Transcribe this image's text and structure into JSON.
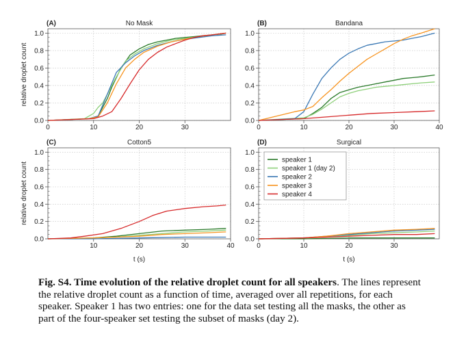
{
  "figure": {
    "y_axis_label": "relative droplet count",
    "x_axis_label": "t (s)"
  },
  "caption": {
    "bold": "Fig. S4. Time evolution of the relative droplet count for all speakers",
    "text": ". The lines represent the relative droplet count as a function of time, averaged over all repetitions, for each speaker. Speaker 1 has two entries: one for the data set testing all the masks, the other as part of the four-speaker set testing the subset of masks (day 2)."
  },
  "legend": {
    "placement": "top-left of panel D",
    "entries": [
      {
        "name": "speaker 1",
        "color": "#2a7a2a"
      },
      {
        "name": "speaker 1 (day 2)",
        "color": "#8ccf78"
      },
      {
        "name": "speaker 2",
        "color": "#3a78b4"
      },
      {
        "name": "speaker 3",
        "color": "#f7931e"
      },
      {
        "name": "speaker 4",
        "color": "#d62728"
      }
    ]
  },
  "chart_data": [
    {
      "type": "line",
      "panel": "(A)",
      "title": "No Mask",
      "xlabel": "",
      "ylabel": "relative droplet count",
      "xlim": [
        0,
        40
      ],
      "ylim": [
        0,
        1.05
      ],
      "xticks": [
        0,
        10,
        20,
        30
      ],
      "yticks": [
        0.0,
        0.2,
        0.4,
        0.6,
        0.8,
        1.0
      ],
      "series": [
        {
          "name": "speaker 1",
          "color": "#2a7a2a",
          "x": [
            0,
            9,
            11,
            12,
            13,
            14,
            16,
            18,
            20,
            22,
            24,
            26,
            28,
            30,
            32,
            34,
            36,
            38,
            39
          ],
          "y": [
            0,
            0.02,
            0.05,
            0.15,
            0.25,
            0.38,
            0.6,
            0.75,
            0.82,
            0.87,
            0.9,
            0.92,
            0.94,
            0.95,
            0.96,
            0.97,
            0.98,
            0.99,
            1.0
          ]
        },
        {
          "name": "speaker 1 (day 2)",
          "color": "#8ccf78",
          "x": [
            0,
            8,
            10,
            11,
            12,
            13,
            15,
            17,
            19,
            21,
            24,
            27,
            30,
            33,
            36,
            39
          ],
          "y": [
            0,
            0.02,
            0.08,
            0.15,
            0.2,
            0.3,
            0.5,
            0.68,
            0.76,
            0.82,
            0.88,
            0.92,
            0.94,
            0.96,
            0.98,
            1.0
          ]
        },
        {
          "name": "speaker 2",
          "color": "#3a78b4",
          "x": [
            0,
            9,
            11,
            13,
            15,
            17,
            19,
            21,
            24,
            27,
            30,
            33,
            36,
            39
          ],
          "y": [
            0,
            0.02,
            0.05,
            0.3,
            0.55,
            0.66,
            0.74,
            0.8,
            0.86,
            0.9,
            0.93,
            0.95,
            0.97,
            0.98
          ]
        },
        {
          "name": "speaker 3",
          "color": "#f7931e",
          "x": [
            0,
            9,
            11,
            13,
            15,
            17,
            19,
            21,
            24,
            27,
            30,
            33,
            36,
            39
          ],
          "y": [
            0,
            0.02,
            0.04,
            0.2,
            0.42,
            0.6,
            0.7,
            0.78,
            0.85,
            0.9,
            0.93,
            0.96,
            0.98,
            1.0
          ]
        },
        {
          "name": "speaker 4",
          "color": "#d62728",
          "x": [
            0,
            10,
            12,
            14,
            16,
            18,
            20,
            22,
            24,
            26,
            28,
            30,
            32,
            34,
            36,
            39
          ],
          "y": [
            0,
            0.02,
            0.05,
            0.1,
            0.25,
            0.42,
            0.58,
            0.7,
            0.78,
            0.84,
            0.88,
            0.92,
            0.95,
            0.97,
            0.98,
            1.0
          ]
        }
      ]
    },
    {
      "type": "line",
      "panel": "(B)",
      "title": "Bandana",
      "xlabel": "",
      "ylabel": "",
      "xlim": [
        0,
        40
      ],
      "ylim": [
        0,
        1.05
      ],
      "xticks": [
        0,
        10,
        20,
        30,
        40
      ],
      "yticks": [
        0.0,
        0.2,
        0.4,
        0.6,
        0.8,
        1.0
      ],
      "series": [
        {
          "name": "speaker 1",
          "color": "#2a7a2a",
          "x": [
            0,
            10,
            12,
            14,
            16,
            18,
            20,
            22,
            24,
            26,
            28,
            30,
            32,
            34,
            36,
            39
          ],
          "y": [
            0,
            0.02,
            0.08,
            0.15,
            0.25,
            0.32,
            0.35,
            0.38,
            0.4,
            0.42,
            0.44,
            0.46,
            0.48,
            0.49,
            0.5,
            0.52
          ]
        },
        {
          "name": "speaker 1 (day 2)",
          "color": "#8ccf78",
          "x": [
            0,
            10,
            12,
            14,
            16,
            18,
            20,
            22,
            24,
            26,
            28,
            30,
            32,
            34,
            36,
            39
          ],
          "y": [
            0,
            0.03,
            0.07,
            0.13,
            0.2,
            0.27,
            0.31,
            0.34,
            0.36,
            0.38,
            0.39,
            0.4,
            0.41,
            0.42,
            0.43,
            0.44
          ]
        },
        {
          "name": "speaker 2",
          "color": "#3a78b4",
          "x": [
            0,
            8,
            10,
            12,
            14,
            16,
            18,
            20,
            22,
            24,
            26,
            28,
            30,
            32,
            34,
            36,
            39
          ],
          "y": [
            0,
            0.02,
            0.1,
            0.3,
            0.48,
            0.6,
            0.7,
            0.77,
            0.82,
            0.86,
            0.88,
            0.9,
            0.91,
            0.92,
            0.94,
            0.96,
            1.0
          ]
        },
        {
          "name": "speaker 3",
          "color": "#f7931e",
          "x": [
            0,
            4,
            8,
            10,
            12,
            14,
            16,
            18,
            20,
            22,
            24,
            26,
            28,
            30,
            32,
            34,
            36,
            39
          ],
          "y": [
            0,
            0.05,
            0.1,
            0.12,
            0.16,
            0.26,
            0.35,
            0.45,
            0.54,
            0.62,
            0.7,
            0.76,
            0.82,
            0.88,
            0.93,
            0.97,
            1.0,
            1.05
          ]
        },
        {
          "name": "speaker 4",
          "color": "#d62728",
          "x": [
            0,
            10,
            15,
            20,
            25,
            30,
            35,
            39
          ],
          "y": [
            0,
            0.02,
            0.04,
            0.06,
            0.08,
            0.09,
            0.1,
            0.11
          ]
        }
      ]
    },
    {
      "type": "line",
      "panel": "(C)",
      "title": "Cotton5",
      "xlabel": "t (s)",
      "ylabel": "relative droplet count",
      "xlim": [
        0,
        40
      ],
      "ylim": [
        0,
        1.05
      ],
      "xticks": [
        10,
        20,
        30,
        40
      ],
      "yticks": [
        0.0,
        0.2,
        0.4,
        0.6,
        0.8,
        1.0
      ],
      "series": [
        {
          "name": "speaker 1",
          "color": "#2a7a2a",
          "x": [
            0,
            10,
            15,
            20,
            25,
            30,
            35,
            39
          ],
          "y": [
            0,
            0.01,
            0.03,
            0.06,
            0.09,
            0.1,
            0.11,
            0.12
          ]
        },
        {
          "name": "speaker 1 (day 2)",
          "color": "#8ccf78",
          "x": [
            0,
            10,
            15,
            20,
            25,
            30,
            35,
            39
          ],
          "y": [
            0,
            0.01,
            0.02,
            0.04,
            0.06,
            0.08,
            0.09,
            0.1
          ]
        },
        {
          "name": "speaker 2",
          "color": "#3a78b4",
          "x": [
            0,
            10,
            20,
            30,
            39
          ],
          "y": [
            0,
            0,
            0.01,
            0.02,
            0.02
          ]
        },
        {
          "name": "speaker 3",
          "color": "#f7931e",
          "x": [
            0,
            10,
            15,
            20,
            25,
            30,
            35,
            39
          ],
          "y": [
            0,
            0.01,
            0.02,
            0.03,
            0.05,
            0.06,
            0.07,
            0.08
          ]
        },
        {
          "name": "speaker 4",
          "color": "#d62728",
          "x": [
            0,
            5,
            8,
            12,
            16,
            20,
            23,
            26,
            30,
            34,
            37,
            39
          ],
          "y": [
            0,
            0.01,
            0.03,
            0.06,
            0.12,
            0.2,
            0.27,
            0.32,
            0.35,
            0.37,
            0.38,
            0.39
          ]
        }
      ]
    },
    {
      "type": "line",
      "panel": "(D)",
      "title": "Surgical",
      "xlabel": "t (s)",
      "ylabel": "",
      "xlim": [
        0,
        40
      ],
      "ylim": [
        0,
        1.05
      ],
      "xticks": [
        0,
        10,
        20,
        30
      ],
      "yticks": [
        0.0,
        0.2,
        0.4,
        0.6,
        0.8,
        1.0
      ],
      "series": [
        {
          "name": "speaker 1",
          "color": "#2a7a2a",
          "x": [
            0,
            10,
            20,
            30,
            39
          ],
          "y": [
            0,
            0,
            0.01,
            0.01,
            0.01
          ]
        },
        {
          "name": "speaker 1 (day 2)",
          "color": "#8ccf78",
          "x": [
            0,
            10,
            15,
            20,
            25,
            30,
            35,
            39
          ],
          "y": [
            0,
            0.01,
            0.02,
            0.04,
            0.06,
            0.07,
            0.08,
            0.09
          ]
        },
        {
          "name": "speaker 2",
          "color": "#3a78b4",
          "x": [
            0,
            10,
            15,
            20,
            25,
            30,
            35,
            39
          ],
          "y": [
            0,
            0.01,
            0.03,
            0.05,
            0.07,
            0.09,
            0.1,
            0.11
          ]
        },
        {
          "name": "speaker 3",
          "color": "#f7931e",
          "x": [
            0,
            10,
            15,
            20,
            25,
            30,
            35,
            39
          ],
          "y": [
            0,
            0.01,
            0.03,
            0.06,
            0.08,
            0.1,
            0.11,
            0.12
          ]
        },
        {
          "name": "speaker 4",
          "color": "#d62728",
          "x": [
            0,
            10,
            15,
            20,
            25,
            30,
            35,
            39
          ],
          "y": [
            0,
            0.01,
            0.02,
            0.03,
            0.04,
            0.05,
            0.05,
            0.06
          ]
        }
      ]
    }
  ]
}
